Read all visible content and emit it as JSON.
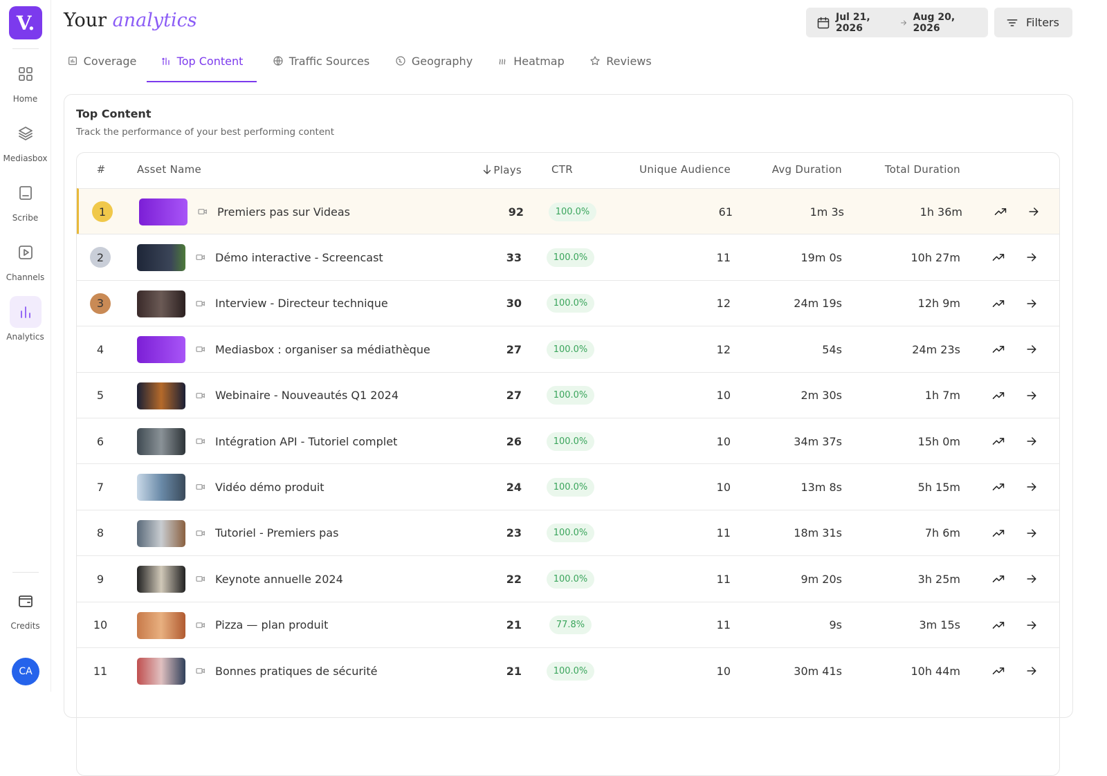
{
  "sidebar": {
    "logo": "V.",
    "nav": [
      "Home",
      "Mediasbox",
      "Scribe",
      "Channels",
      "Analytics"
    ],
    "active_nav": 4,
    "credits": "Credits",
    "avatar": "CA"
  },
  "header": {
    "title": "Your",
    "title_accent": "analytics",
    "date_from": "Jul 21, 2026",
    "date_to": "Aug 20, 2026",
    "filters": "Filters"
  },
  "tabs": [
    "Coverage",
    "Top Content",
    "Traffic Sources",
    "Geography",
    "Heatmap",
    "Reviews"
  ],
  "active_tab": 1,
  "card": {
    "title": "Top Content",
    "subtitle": "Track the performance of your best performing content"
  },
  "table": {
    "columns": [
      "#",
      "Asset Name",
      "Plays",
      "CTR",
      "Unique Audience",
      "Avg Duration",
      "Total Duration"
    ],
    "rows": [
      [
        1,
        "Premiers pas sur Videas",
        92,
        "100.0%",
        61,
        "1m 3s",
        "1h 36m"
      ],
      [
        2,
        "Démo interactive - Screencast",
        33,
        "100.0%",
        11,
        "19m 0s",
        "10h 27m"
      ],
      [
        3,
        "Interview - Directeur technique",
        30,
        "100.0%",
        12,
        "24m 19s",
        "12h 9m"
      ],
      [
        4,
        "Mediasbox : organiser sa médiathèque",
        27,
        "100.0%",
        12,
        "54s",
        "24m 23s"
      ],
      [
        5,
        "Webinaire - Nouveautés Q1 2024",
        27,
        "100.0%",
        10,
        "2m 30s",
        "1h 7m"
      ],
      [
        6,
        "Intégration API - Tutoriel complet",
        26,
        "100.0%",
        10,
        "34m 37s",
        "15h 0m"
      ],
      [
        7,
        "Vidéo démo produit",
        24,
        "100.0%",
        10,
        "13m 8s",
        "5h 15m"
      ],
      [
        8,
        "Tutoriel - Premiers pas",
        23,
        "100.0%",
        11,
        "18m 31s",
        "7h 6m"
      ],
      [
        9,
        "Keynote annuelle 2024",
        22,
        "100.0%",
        11,
        "9m 20s",
        "3h 25m"
      ],
      [
        10,
        "Pizza — plan produit",
        21,
        "77.8%",
        11,
        "9s",
        "3m 15s"
      ],
      [
        11,
        "Bonnes pratiques de sécurité",
        21,
        "100.0%",
        10,
        "30m 41s",
        "10h 44m"
      ]
    ]
  }
}
